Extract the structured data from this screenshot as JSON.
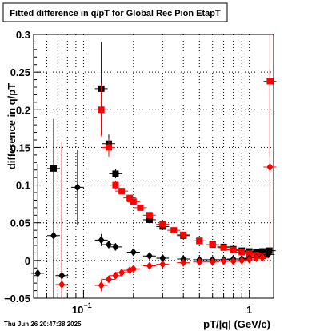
{
  "chart_data": {
    "type": "scatter",
    "title": "Fitted difference in q/pT for Global Rec Pion EtapT",
    "xlabel": "pT/|q| (GeV/c)",
    "ylabel": "difference in q/pT",
    "x_scale": "log",
    "xlim": [
      0.05,
      1.4
    ],
    "ylim": [
      -0.05,
      0.3
    ],
    "grid": true,
    "x_tick_labels": [
      {
        "value": 0.1,
        "label": "10",
        "exp": "−1"
      },
      {
        "value": 1,
        "label": "1",
        "exp": ""
      }
    ],
    "y_ticks": [
      -0.05,
      0,
      0.05,
      0.1,
      0.15,
      0.2,
      0.25,
      0.3
    ],
    "y_tick_labels": [
      "−0.05",
      "0",
      "0.05",
      "0.1",
      "0.15",
      "0.2",
      "0.25",
      "0.3"
    ],
    "timestamp": "Thu Jun 26 20:47:38 2025",
    "series": [
      {
        "marker": "square",
        "color": "#000000",
        "points": [
          {
            "x": 0.066,
            "y": 0.122,
            "err": 0.065
          },
          {
            "x": 0.128,
            "y": 0.228,
            "err": 0.062
          },
          {
            "x": 0.142,
            "y": 0.155,
            "err": 0.012
          },
          {
            "x": 0.156,
            "y": 0.115,
            "err": 0.006
          },
          {
            "x": 0.25,
            "y": 0.054,
            "err": 0.003
          },
          {
            "x": 0.3,
            "y": 0.045,
            "err": 0.002
          },
          {
            "x": 0.4,
            "y": 0.033,
            "err": 0.002
          },
          {
            "x": 0.5,
            "y": 0.026,
            "err": 0.002
          },
          {
            "x": 0.6,
            "y": 0.021,
            "err": 0.002
          },
          {
            "x": 0.7,
            "y": 0.018,
            "err": 0.002
          },
          {
            "x": 0.8,
            "y": 0.015,
            "err": 0.002
          },
          {
            "x": 0.9,
            "y": 0.013,
            "err": 0.002
          },
          {
            "x": 1.0,
            "y": 0.012,
            "err": 0.002
          },
          {
            "x": 1.1,
            "y": 0.011,
            "err": 0.002
          },
          {
            "x": 1.2,
            "y": 0.012,
            "err": 0.003
          },
          {
            "x": 1.32,
            "y": 0.013,
            "err": 0.003
          }
        ]
      },
      {
        "marker": "square",
        "color": "#ff0000",
        "points": [
          {
            "x": 0.128,
            "y": 0.2,
            "err": 0.035
          },
          {
            "x": 0.142,
            "y": 0.15,
            "err": 0.012
          },
          {
            "x": 0.156,
            "y": 0.1,
            "err": 0.006
          },
          {
            "x": 0.17,
            "y": 0.092,
            "err": 0.004
          },
          {
            "x": 0.19,
            "y": 0.083,
            "err": 0.003
          },
          {
            "x": 0.2,
            "y": 0.078,
            "err": 0.003
          },
          {
            "x": 0.22,
            "y": 0.07,
            "err": 0.003
          },
          {
            "x": 0.25,
            "y": 0.06,
            "err": 0.002
          },
          {
            "x": 0.3,
            "y": 0.048,
            "err": 0.002
          },
          {
            "x": 0.35,
            "y": 0.04,
            "err": 0.002
          },
          {
            "x": 0.4,
            "y": 0.034,
            "err": 0.002
          },
          {
            "x": 0.5,
            "y": 0.026,
            "err": 0.002
          },
          {
            "x": 0.6,
            "y": 0.021,
            "err": 0.002
          },
          {
            "x": 0.7,
            "y": 0.017,
            "err": 0.002
          },
          {
            "x": 0.8,
            "y": 0.014,
            "err": 0.002
          },
          {
            "x": 0.9,
            "y": 0.011,
            "err": 0.002
          },
          {
            "x": 1.0,
            "y": 0.009,
            "err": 0.002
          },
          {
            "x": 1.1,
            "y": 0.007,
            "err": 0.003
          },
          {
            "x": 1.2,
            "y": 0.006,
            "err": 0.003
          },
          {
            "x": 1.33,
            "y": 0.238,
            "err": 0.1
          }
        ]
      },
      {
        "marker": "diamond",
        "color": "#000000",
        "points": [
          {
            "x": 0.053,
            "y": -0.017,
            "err": 0.145
          },
          {
            "x": 0.066,
            "y": 0.033,
            "err": 0.155
          },
          {
            "x": 0.074,
            "y": -0.02,
            "err": 0.17
          },
          {
            "x": 0.092,
            "y": 0.097,
            "err": 0.05
          },
          {
            "x": 0.128,
            "y": 0.027,
            "err": 0.008
          },
          {
            "x": 0.142,
            "y": 0.021,
            "err": 0.004
          },
          {
            "x": 0.156,
            "y": 0.018,
            "err": 0.003
          },
          {
            "x": 0.2,
            "y": 0.011,
            "err": 0.002
          },
          {
            "x": 0.25,
            "y": 0.006,
            "err": 0.002
          },
          {
            "x": 0.3,
            "y": 0.003,
            "err": 0.002
          },
          {
            "x": 0.4,
            "y": 0.002,
            "err": 0.002
          },
          {
            "x": 0.5,
            "y": 0.001,
            "err": 0.002
          },
          {
            "x": 0.6,
            "y": 0.001,
            "err": 0.002
          },
          {
            "x": 0.7,
            "y": 0.001,
            "err": 0.002
          },
          {
            "x": 0.8,
            "y": 0.002,
            "err": 0.002
          },
          {
            "x": 0.9,
            "y": 0.002,
            "err": 0.002
          },
          {
            "x": 1.0,
            "y": 0.003,
            "err": 0.002
          },
          {
            "x": 1.1,
            "y": 0.004,
            "err": 0.003
          },
          {
            "x": 1.2,
            "y": 0.005,
            "err": 0.003
          },
          {
            "x": 1.3,
            "y": 0.008,
            "err": 0.003
          }
        ]
      },
      {
        "marker": "diamond",
        "color": "#ff0000",
        "points": [
          {
            "x": 0.074,
            "y": -0.032,
            "err": 0.19
          },
          {
            "x": 0.128,
            "y": -0.033,
            "err": 0.008
          },
          {
            "x": 0.142,
            "y": -0.025,
            "err": 0.005
          },
          {
            "x": 0.156,
            "y": -0.02,
            "err": 0.004
          },
          {
            "x": 0.17,
            "y": -0.016,
            "err": 0.003
          },
          {
            "x": 0.19,
            "y": -0.013,
            "err": 0.003
          },
          {
            "x": 0.2,
            "y": -0.011,
            "err": 0.002
          },
          {
            "x": 0.25,
            "y": -0.007,
            "err": 0.002
          },
          {
            "x": 0.3,
            "y": -0.005,
            "err": 0.002
          },
          {
            "x": 0.4,
            "y": -0.003,
            "err": 0.002
          },
          {
            "x": 0.5,
            "y": -0.002,
            "err": 0.002
          },
          {
            "x": 0.6,
            "y": -0.002,
            "err": 0.002
          },
          {
            "x": 0.7,
            "y": -0.001,
            "err": 0.002
          },
          {
            "x": 0.8,
            "y": -0.001,
            "err": 0.002
          },
          {
            "x": 0.9,
            "y": 0.0,
            "err": 0.002
          },
          {
            "x": 1.0,
            "y": 0.001,
            "err": 0.002
          },
          {
            "x": 1.1,
            "y": 0.003,
            "err": 0.003
          },
          {
            "x": 1.2,
            "y": 0.004,
            "err": 0.003
          },
          {
            "x": 1.33,
            "y": 0.124,
            "err": 0.13
          }
        ]
      }
    ]
  }
}
